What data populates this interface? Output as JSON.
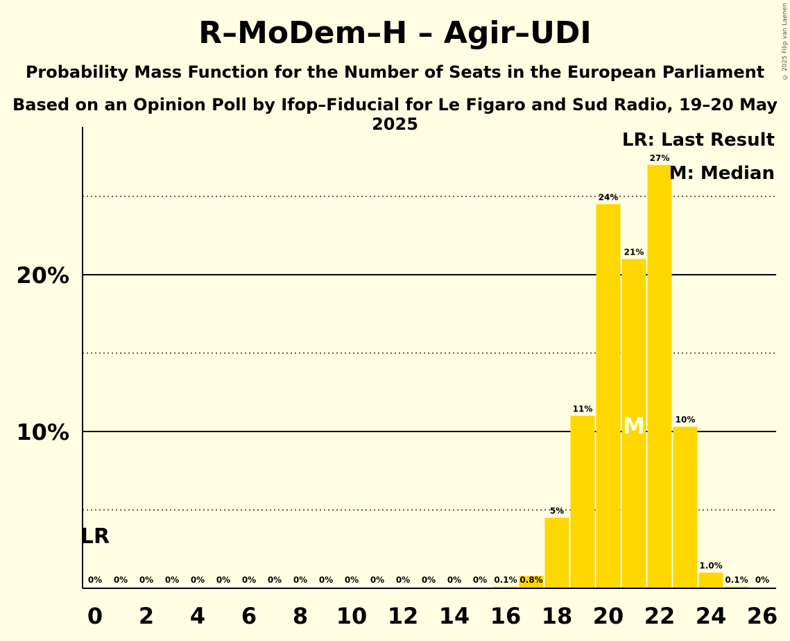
{
  "title": "R–MoDem–H – Agir–UDI",
  "subtitle1": "Probability Mass Function for the Number of Seats in the European Parliament",
  "subtitle2": "Based on an Opinion Poll by Ifop–Fiducial for Le Figaro and Sud Radio, 19–20 May 2025",
  "copyright": "© 2025 Filip van Laenen",
  "legend": {
    "lr": "LR: Last Result",
    "m": "M: Median"
  },
  "markers": {
    "lr": "LR",
    "m": "M"
  },
  "colors": {
    "bar": "#FFD700",
    "background": "#FFFEE3"
  },
  "chart_data": {
    "type": "bar",
    "x": [
      0,
      1,
      2,
      3,
      4,
      5,
      6,
      7,
      8,
      9,
      10,
      11,
      12,
      13,
      14,
      15,
      16,
      17,
      18,
      19,
      20,
      21,
      22,
      23,
      24,
      25,
      26
    ],
    "values": [
      0,
      0,
      0,
      0,
      0,
      0,
      0,
      0,
      0,
      0,
      0,
      0,
      0,
      0,
      0,
      0,
      0.1,
      0.8,
      4.5,
      11,
      24.5,
      21,
      27,
      10.3,
      1.0,
      0.1,
      0
    ],
    "data_labels": [
      "0%",
      "0%",
      "0%",
      "0%",
      "0%",
      "0%",
      "0%",
      "0%",
      "0%",
      "0%",
      "0%",
      "0%",
      "0%",
      "0%",
      "0%",
      "0%",
      "0.1%",
      "0.8%",
      "5%",
      "11%",
      "24%",
      "21%",
      "27%",
      "10%",
      "1.0%",
      "0.1%",
      "0%"
    ],
    "x_tick_labels": [
      "0",
      "2",
      "4",
      "6",
      "8",
      "10",
      "12",
      "14",
      "16",
      "18",
      "20",
      "22",
      "24",
      "26"
    ],
    "y_tick_labels": [
      "10%",
      "20%"
    ],
    "ylim": [
      0,
      29.4
    ],
    "last_result": 0,
    "median": 21,
    "grid": {
      "solid": [
        10,
        20
      ],
      "dotted": [
        5,
        15,
        25
      ]
    }
  }
}
